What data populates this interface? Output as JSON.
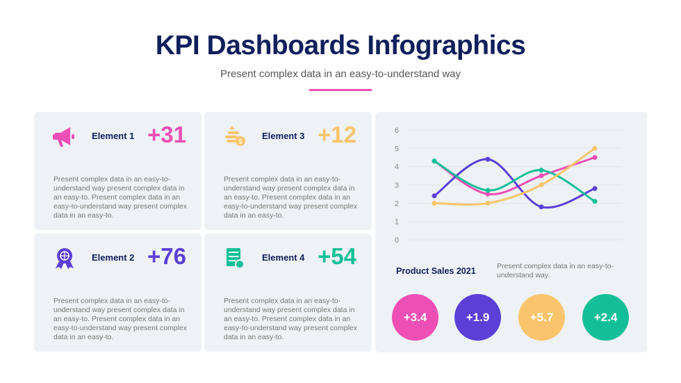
{
  "header": {
    "title": "KPI Dashboards Infographics",
    "subtitle": "Present complex data in an easy-to-understand way",
    "accent": "#ee4fb4"
  },
  "cards": [
    {
      "name": "Element 1",
      "value": "+31",
      "color": "#ee4fb4",
      "icon": "megaphone-icon",
      "desc": "Present complex data in an easy-to-understand way present complex data in an easy-to. Present complex data in an easy-to-understand way present complex data in an easy-to."
    },
    {
      "name": "Element 3",
      "value": "+12",
      "color": "#f9c46b",
      "icon": "coins-dollar-icon",
      "desc": "Present complex data in an easy-to-understand way present complex data in an easy-to. Present complex data in an easy-to-understand way present complex data in an easy-to."
    },
    {
      "name": "Element 2",
      "value": "+76",
      "color": "#5b3fd6",
      "icon": "award-globe-icon",
      "desc": "Present complex data in an easy-to-understand way present complex data in an easy-to. Present complex data in an easy-to-understand way present complex data in an easy-to."
    },
    {
      "name": "Element 4",
      "value": "+54",
      "color": "#13bf98",
      "icon": "checklist-clock-icon",
      "desc": "Present complex data in an easy-to-understand way present complex data in an easy-to. Present complex data in an easy-to-understand way present complex data in an easy-to."
    }
  ],
  "panel": {
    "title": "Product Sales 2021",
    "desc": "Present complex data in an easy-to-understand way.",
    "badges": [
      {
        "value": "+3.4",
        "color": "#ee4fb4"
      },
      {
        "value": "+1.9",
        "color": "#5b3fd6"
      },
      {
        "value": "+5.7",
        "color": "#f9c46b"
      },
      {
        "value": "+2.4",
        "color": "#13bf98"
      }
    ]
  },
  "chart_data": {
    "type": "line",
    "ylim": [
      0,
      6
    ],
    "yticks": [
      "0",
      "1",
      "2",
      "3",
      "4",
      "5",
      "6"
    ],
    "grid": true,
    "smooth": true,
    "x": [
      1,
      2,
      3,
      4
    ],
    "series": [
      {
        "color": "#ee4fb4",
        "values": [
          4.3,
          2.5,
          3.5,
          4.5
        ]
      },
      {
        "color": "#5b3fd6",
        "values": [
          2.4,
          4.4,
          1.8,
          2.8
        ]
      },
      {
        "color": "#13bf98",
        "values": [
          4.3,
          2.7,
          3.8,
          2.1
        ]
      },
      {
        "color": "#f9c46b",
        "values": [
          2.0,
          2.0,
          3.0,
          5.0
        ]
      }
    ]
  }
}
